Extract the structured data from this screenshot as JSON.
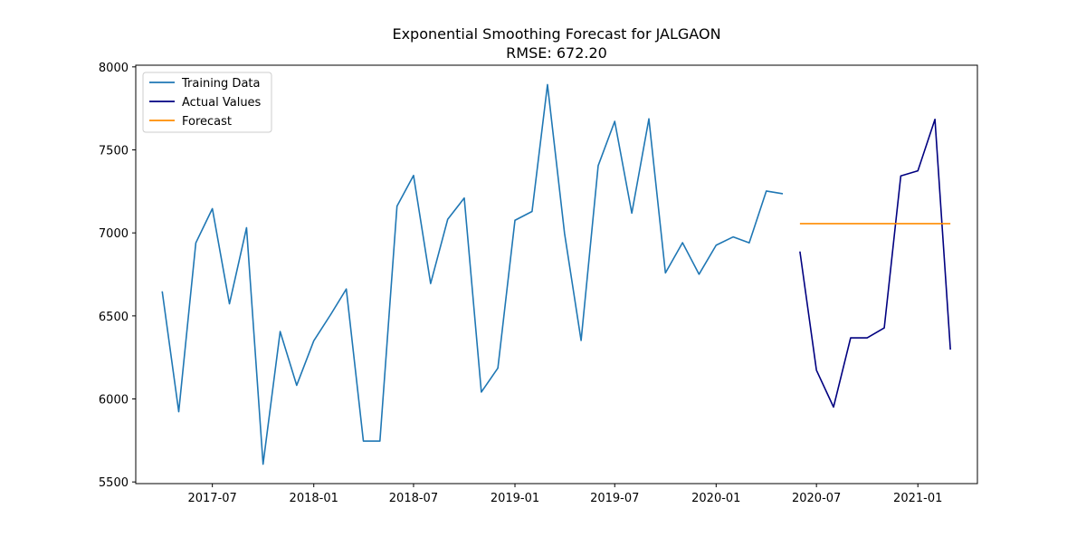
{
  "chart_data": {
    "type": "line",
    "title": "Exponential Smoothing Forecast for JALGAON",
    "subtitle": "RMSE: 672.20",
    "xlabel": "",
    "ylabel": "",
    "x_ticks": [
      "2017-07",
      "2018-01",
      "2018-07",
      "2019-01",
      "2019-07",
      "2020-01",
      "2020-07",
      "2021-01"
    ],
    "y_ticks": [
      5500,
      6000,
      6500,
      7000,
      7500,
      8000
    ],
    "xlim": [
      "2017-02-12",
      "2021-04-19"
    ],
    "ylim": [
      5490,
      8010
    ],
    "grid": false,
    "legend_position": "top-left",
    "colors": {
      "training": "#1f77b4",
      "actual": "#000080",
      "forecast": "#ff8c00"
    },
    "series": [
      {
        "name": "Training Data",
        "color": "#1f77b4",
        "points": [
          {
            "x": "2017-04-01",
            "y": 6648
          },
          {
            "x": "2017-05-01",
            "y": 5923
          },
          {
            "x": "2017-06-01",
            "y": 6940
          },
          {
            "x": "2017-07-01",
            "y": 7146
          },
          {
            "x": "2017-08-01",
            "y": 6573
          },
          {
            "x": "2017-09-01",
            "y": 7031
          },
          {
            "x": "2017-10-01",
            "y": 5607
          },
          {
            "x": "2017-11-01",
            "y": 6406
          },
          {
            "x": "2017-12-01",
            "y": 6082
          },
          {
            "x": "2018-01-01",
            "y": 6350
          },
          {
            "x": "2018-02-01",
            "y": 6510
          },
          {
            "x": "2018-03-01",
            "y": 6662
          },
          {
            "x": "2018-04-01",
            "y": 5746
          },
          {
            "x": "2018-05-01",
            "y": 5746
          },
          {
            "x": "2018-06-01",
            "y": 7161
          },
          {
            "x": "2018-07-01",
            "y": 7346
          },
          {
            "x": "2018-08-01",
            "y": 6695
          },
          {
            "x": "2018-09-01",
            "y": 7082
          },
          {
            "x": "2018-10-01",
            "y": 7210
          },
          {
            "x": "2018-11-01",
            "y": 6041
          },
          {
            "x": "2018-12-01",
            "y": 6186
          },
          {
            "x": "2019-01-01",
            "y": 7076
          },
          {
            "x": "2019-02-01",
            "y": 7129
          },
          {
            "x": "2019-03-01",
            "y": 7893
          },
          {
            "x": "2019-04-01",
            "y": 6996
          },
          {
            "x": "2019-05-01",
            "y": 6352
          },
          {
            "x": "2019-06-01",
            "y": 7405
          },
          {
            "x": "2019-07-01",
            "y": 7672
          },
          {
            "x": "2019-08-01",
            "y": 7119
          },
          {
            "x": "2019-09-01",
            "y": 7687
          },
          {
            "x": "2019-10-01",
            "y": 6759
          },
          {
            "x": "2019-11-01",
            "y": 6941
          },
          {
            "x": "2019-12-01",
            "y": 6751
          },
          {
            "x": "2020-01-01",
            "y": 6926
          },
          {
            "x": "2020-02-01",
            "y": 6976
          },
          {
            "x": "2020-03-01",
            "y": 6940
          },
          {
            "x": "2020-04-01",
            "y": 7252
          },
          {
            "x": "2020-05-01",
            "y": 7236
          }
        ]
      },
      {
        "name": "Actual Values",
        "color": "#000080",
        "points": [
          {
            "x": "2020-06-01",
            "y": 6888
          },
          {
            "x": "2020-07-01",
            "y": 6173
          },
          {
            "x": "2020-08-01",
            "y": 5951
          },
          {
            "x": "2020-09-01",
            "y": 6368
          },
          {
            "x": "2020-10-01",
            "y": 6368
          },
          {
            "x": "2020-11-01",
            "y": 6428
          },
          {
            "x": "2020-12-01",
            "y": 7343
          },
          {
            "x": "2021-01-01",
            "y": 7374
          },
          {
            "x": "2021-02-01",
            "y": 7684
          },
          {
            "x": "2021-03-01",
            "y": 6297
          }
        ]
      },
      {
        "name": "Forecast",
        "color": "#ff8c00",
        "points": [
          {
            "x": "2020-06-01",
            "y": 7056
          },
          {
            "x": "2020-07-01",
            "y": 7056
          },
          {
            "x": "2020-08-01",
            "y": 7056
          },
          {
            "x": "2020-09-01",
            "y": 7056
          },
          {
            "x": "2020-10-01",
            "y": 7056
          },
          {
            "x": "2020-11-01",
            "y": 7056
          },
          {
            "x": "2020-12-01",
            "y": 7056
          },
          {
            "x": "2021-01-01",
            "y": 7056
          },
          {
            "x": "2021-02-01",
            "y": 7056
          },
          {
            "x": "2021-03-01",
            "y": 7056
          }
        ]
      }
    ]
  }
}
